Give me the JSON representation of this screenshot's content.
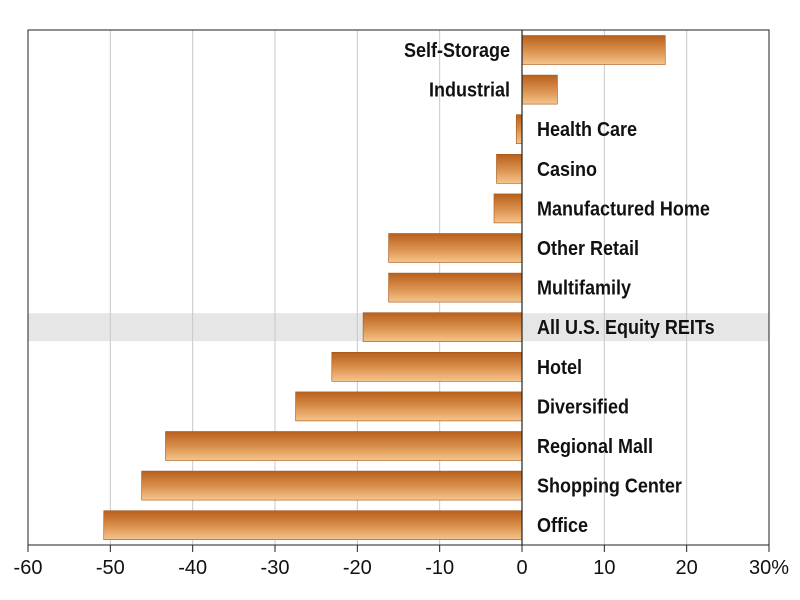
{
  "chart_data": {
    "type": "bar",
    "orientation": "horizontal",
    "categories": [
      "Self-Storage",
      "Industrial",
      "Health Care",
      "Casino",
      "Manufactured Home",
      "Other Retail",
      "Multifamily",
      "All U.S. Equity REITs",
      "Hotel",
      "Diversified",
      "Regional Mall",
      "Shopping Center",
      "Office"
    ],
    "values": [
      17.4,
      4.3,
      -0.7,
      -3.1,
      -3.4,
      -16.2,
      -16.2,
      -19.3,
      -23.1,
      -27.5,
      -43.3,
      -46.2,
      -50.8
    ],
    "highlight_category": "All U.S. Equity REITs",
    "xlim": [
      -60,
      30
    ],
    "x_ticks": [
      -60,
      -50,
      -40,
      -30,
      -20,
      -10,
      0,
      10,
      20,
      30
    ],
    "x_tick_labels": [
      "-60",
      "-50",
      "-40",
      "-30",
      "-20",
      "-10",
      "0",
      "10",
      "20",
      "30%"
    ],
    "grid": "vertical",
    "bar_color_dark": "#b8601c",
    "bar_color_light": "#f5c58c",
    "highlight_band_color": "#e6e6e6",
    "title": "",
    "xlabel": "",
    "ylabel": ""
  }
}
